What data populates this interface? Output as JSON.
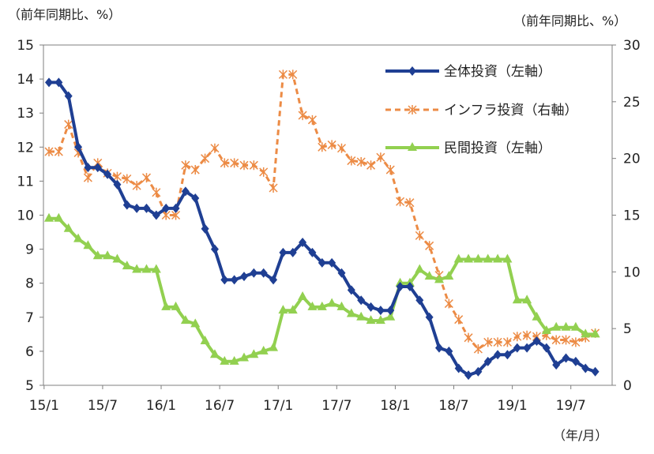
{
  "chart_data": {
    "type": "line",
    "left_axis_unit": "（前年同期比、%）",
    "right_axis_unit": "（前年同期比、%）",
    "x_unit": "（年/月）",
    "left_ylim": [
      5,
      15
    ],
    "right_ylim": [
      0,
      30
    ],
    "left_ticks": [
      "5",
      "6",
      "7",
      "8",
      "9",
      "10",
      "11",
      "12",
      "13",
      "14",
      "15"
    ],
    "right_ticks": [
      "0",
      "5",
      "10",
      "15",
      "20",
      "25",
      "30"
    ],
    "x_tick_labels": [
      "15/1",
      "15/7",
      "16/1",
      "16/7",
      "17/1",
      "17/7",
      "18/1",
      "18/7",
      "19/1",
      "19/7"
    ],
    "x_tick_index": [
      0,
      6,
      12,
      18,
      24,
      30,
      36,
      42,
      48,
      54
    ],
    "n_points": 57,
    "series": [
      {
        "name": "全体投資（左軸）",
        "axis": "left",
        "color": "#1f3f93",
        "dash": "",
        "marker": "diamond",
        "values": [
          13.9,
          13.9,
          13.5,
          12.0,
          11.4,
          11.4,
          11.2,
          10.9,
          10.3,
          10.2,
          10.2,
          10.0,
          10.2,
          10.2,
          10.7,
          10.5,
          9.6,
          9.0,
          8.1,
          8.1,
          8.2,
          8.3,
          8.3,
          8.1,
          8.9,
          8.9,
          9.2,
          8.9,
          8.6,
          8.6,
          8.3,
          7.8,
          7.5,
          7.3,
          7.2,
          7.2,
          7.9,
          7.9,
          7.5,
          7.0,
          6.1,
          6.0,
          5.5,
          5.3,
          5.4,
          5.7,
          5.9,
          5.9,
          6.1,
          6.1,
          6.3,
          6.1,
          5.6,
          5.8,
          5.7,
          5.5,
          5.4
        ]
      },
      {
        "name": "インフラ投資（右軸）",
        "axis": "right",
        "color": "#ec8b45",
        "dash": "7,5",
        "marker": "asterisk",
        "values": [
          20.6,
          20.6,
          23.0,
          20.5,
          18.3,
          19.6,
          18.7,
          18.4,
          18.2,
          17.6,
          18.3,
          17.0,
          15.0,
          15.0,
          19.4,
          19.0,
          20.0,
          20.9,
          19.6,
          19.6,
          19.4,
          19.4,
          18.8,
          17.4,
          27.4,
          27.4,
          23.8,
          23.4,
          21.0,
          21.2,
          20.9,
          19.8,
          19.7,
          19.4,
          20.1,
          19.0,
          16.2,
          16.1,
          13.2,
          12.3,
          9.7,
          7.2,
          5.8,
          4.2,
          3.2,
          3.8,
          3.8,
          3.8,
          4.3,
          4.4,
          4.3,
          4.4,
          4.0,
          4.0,
          3.8,
          4.2,
          4.6
        ]
      },
      {
        "name": "民間投資（左軸）",
        "axis": "left",
        "color": "#92d050",
        "dash": "",
        "marker": "triangle",
        "values": [
          9.9,
          9.9,
          9.6,
          9.3,
          9.1,
          8.8,
          8.8,
          8.7,
          8.5,
          8.4,
          8.4,
          8.4,
          7.3,
          7.3,
          6.9,
          6.8,
          6.3,
          5.9,
          5.7,
          5.7,
          5.8,
          5.9,
          6.0,
          6.1,
          7.2,
          7.2,
          7.6,
          7.3,
          7.3,
          7.4,
          7.3,
          7.1,
          7.0,
          6.9,
          6.9,
          7.0,
          8.0,
          8.0,
          8.4,
          8.2,
          8.1,
          8.2,
          8.7,
          8.7,
          8.7,
          8.7,
          8.7,
          8.7,
          7.5,
          7.5,
          7.0,
          6.6,
          6.7,
          6.7,
          6.7,
          6.5,
          6.5
        ]
      }
    ],
    "legend_position": "top-right"
  }
}
